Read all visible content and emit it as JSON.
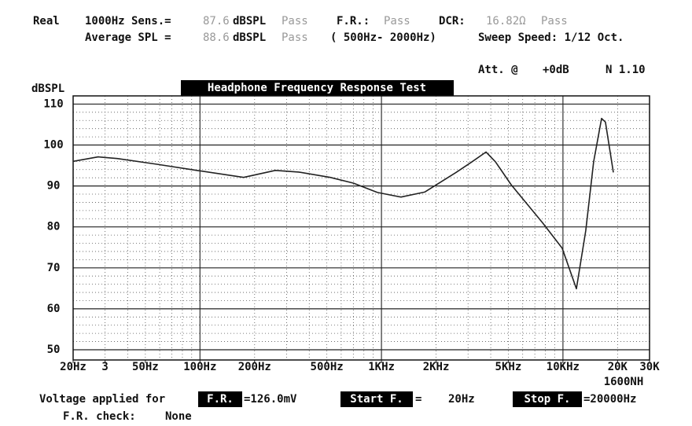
{
  "header": {
    "real": "Real",
    "sens_label": "1000Hz Sens.=",
    "sens_value": "87.6",
    "sens_unit": "dBSPL",
    "sens_status": "Pass",
    "fr_label": "F.R.:",
    "fr_status": "Pass",
    "dcr_label": "DCR:",
    "dcr_value": "16.82Ω",
    "dcr_status": "Pass",
    "avg_label": "Average SPL =",
    "avg_value": "88.6",
    "avg_unit": "dBSPL",
    "avg_status": "Pass",
    "avg_range": "( 500Hz- 2000Hz)",
    "sweep": "Sweep Speed: 1/12 Oct.",
    "att_label": "Att. @",
    "att_value": "+0dB",
    "version": "N 1.10"
  },
  "chart_data": {
    "type": "line",
    "title": "Headphone Frequency Response Test",
    "y_label": "dBSPL",
    "x": [
      20,
      27.5,
      35,
      58,
      96,
      174,
      260,
      350,
      522,
      700,
      950,
      1282,
      1730,
      2576,
      3150,
      3770,
      4250,
      5180,
      7720,
      9900,
      11860,
      13360,
      14760,
      16330,
      17140,
      18960
    ],
    "values": [
      96.0,
      97.1,
      96.7,
      95.3,
      93.8,
      92.1,
      93.8,
      93.4,
      92.1,
      90.7,
      88.4,
      87.3,
      88.5,
      93.3,
      95.9,
      98.3,
      95.9,
      90.3,
      81.0,
      74.8,
      64.9,
      79.1,
      95.9,
      106.5,
      105.6,
      93.3
    ],
    "color": "#222222",
    "xlim": [
      20,
      30000
    ],
    "log_x": true,
    "xticks": [
      {
        "value": 20,
        "label": "20Hz"
      },
      3,
      {
        "value": 30,
        "label": "3"
      },
      {
        "value": 50,
        "label": "50Hz"
      },
      {
        "value": 100,
        "label": "100Hz"
      },
      {
        "value": 200,
        "label": "200Hz"
      },
      {
        "value": 500,
        "label": "500Hz"
      },
      {
        "value": 1000,
        "label": "1KHz"
      },
      {
        "value": 2000,
        "label": "2KHz"
      },
      {
        "value": 5000,
        "label": "5KHz"
      },
      {
        "value": 10000,
        "label": "10KHz"
      },
      {
        "value": 20000,
        "label": "20K"
      },
      {
        "value": 30000,
        "label": "30K"
      }
    ],
    "x_note": "1600NH",
    "ylim": [
      47.5,
      112
    ],
    "yticks": [
      50,
      60,
      70,
      80,
      90,
      100,
      110
    ],
    "grid": true
  },
  "footer": {
    "voltage_label": "Voltage applied for",
    "fr_box": "F.R.",
    "voltage_value": "=126.0mV",
    "start_box": "Start F.",
    "start_eq": "=",
    "start_value": "20Hz",
    "stop_box": "Stop F.",
    "stop_value": "=20000Hz",
    "check_label": "F.R. check:",
    "check_value": "None"
  }
}
